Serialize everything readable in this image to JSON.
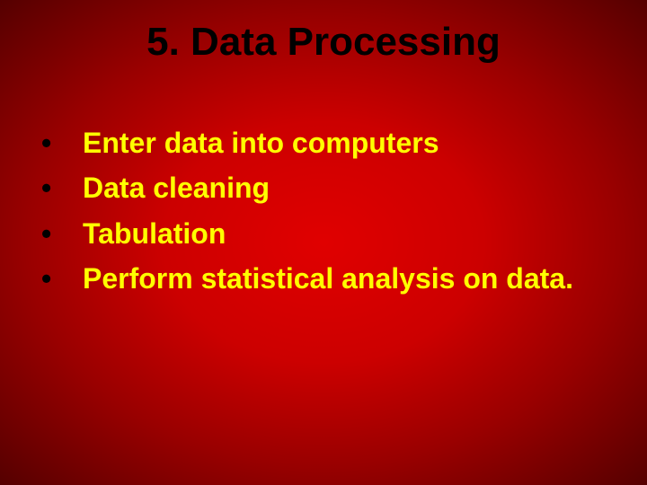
{
  "slide": {
    "title": "5.  Data Processing",
    "title_color": "#000000",
    "title_fontsize": 44,
    "bullet_char": "•",
    "bullet_color": "#000000",
    "bullet_fontsize": 32,
    "item_color": "#ffff00",
    "item_fontsize": 32,
    "items": [
      "Enter data into computers",
      "Data cleaning",
      "Tabulation",
      "Perform statistical analysis on data."
    ],
    "background_gradient": [
      "#e00000",
      "#cc0000",
      "#990000",
      "#550000"
    ]
  }
}
